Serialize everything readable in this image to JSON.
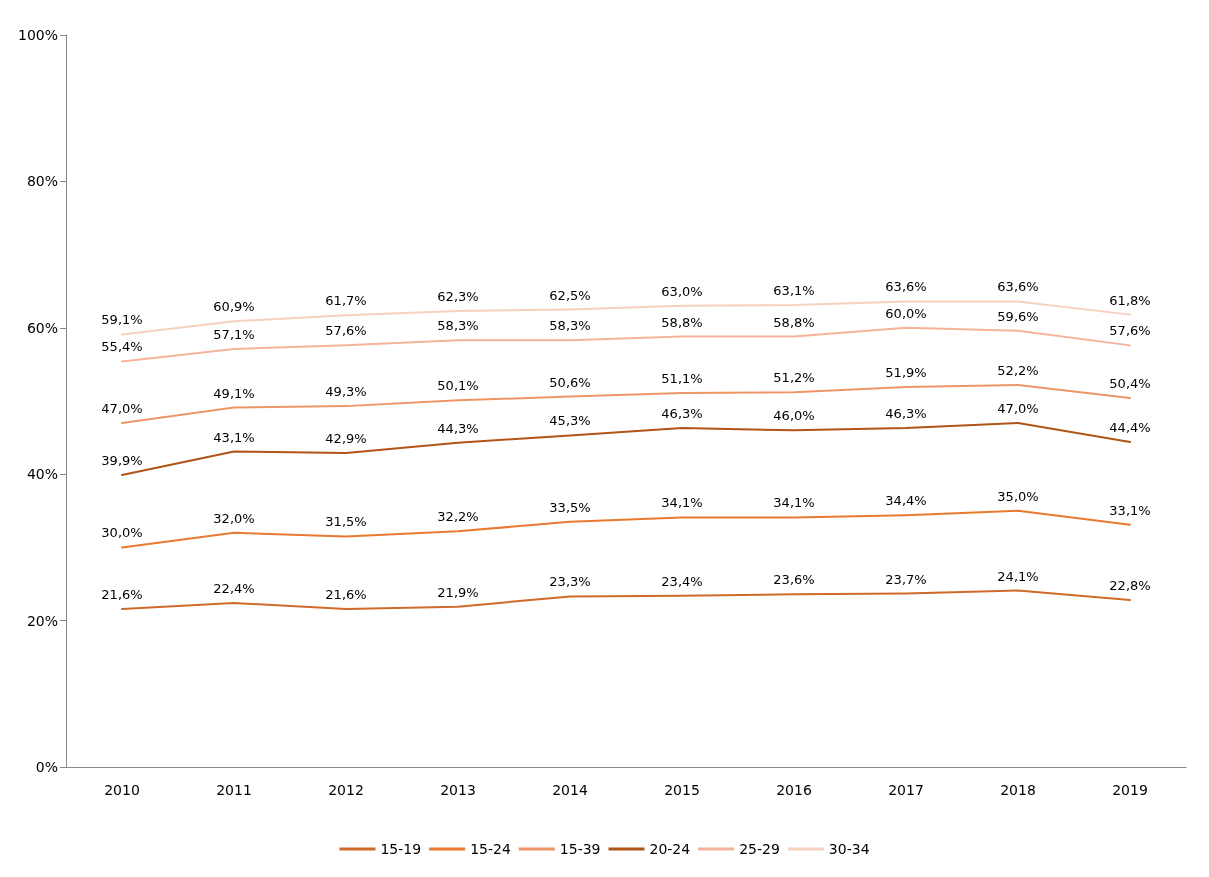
{
  "chart_data": {
    "type": "line",
    "categories": [
      "2010",
      "2011",
      "2012",
      "2013",
      "2014",
      "2015",
      "2016",
      "2017",
      "2018",
      "2019"
    ],
    "series": [
      {
        "name": "15-19",
        "color": "#d06a2a",
        "values": [
          21.6,
          22.4,
          21.6,
          21.9,
          23.3,
          23.4,
          23.6,
          23.7,
          24.1,
          22.8
        ],
        "value_labels": [
          "21,6%",
          "22,4%",
          "21,6%",
          "21,9%",
          "23,3%",
          "23,4%",
          "23,6%",
          "23,7%",
          "24,1%",
          "22,8%"
        ]
      },
      {
        "name": "15-24",
        "color": "#e87a30",
        "values": [
          30.0,
          32.0,
          31.5,
          32.2,
          33.5,
          34.1,
          34.1,
          34.4,
          35.0,
          33.1
        ],
        "value_labels": [
          "30,0%",
          "32,0%",
          "31,5%",
          "32,2%",
          "33,5%",
          "34,1%",
          "34,1%",
          "34,4%",
          "35,0%",
          "33,1%"
        ]
      },
      {
        "name": "15-39",
        "color": "#ee9566",
        "values": [
          47.0,
          49.1,
          49.3,
          50.1,
          50.6,
          51.1,
          51.2,
          51.9,
          52.2,
          50.4
        ],
        "value_labels": [
          "47,0%",
          "49,1%",
          "49,3%",
          "50,1%",
          "50,6%",
          "51,1%",
          "51,2%",
          "51,9%",
          "52,2%",
          "50,4%"
        ]
      },
      {
        "name": "20-24",
        "color": "#b05418",
        "values": [
          39.9,
          43.1,
          42.9,
          44.3,
          45.3,
          46.3,
          46.0,
          46.3,
          47.0,
          44.4
        ],
        "value_labels": [
          "39,9%",
          "43,1%",
          "42,9%",
          "44,3%",
          "45,3%",
          "46,3%",
          "46,0%",
          "46,3%",
          "47,0%",
          "44,4%"
        ]
      },
      {
        "name": "25-29",
        "color": "#f4b49a",
        "values": [
          55.4,
          57.1,
          57.6,
          58.3,
          58.3,
          58.8,
          58.8,
          60.0,
          59.6,
          57.6
        ],
        "value_labels": [
          "55,4%",
          "57,1%",
          "57,6%",
          "58,3%",
          "58,3%",
          "58,8%",
          "58,8%",
          "60,0%",
          "59,6%",
          "57,6%"
        ]
      },
      {
        "name": "30-34",
        "color": "#f8d0bf",
        "values": [
          59.1,
          60.9,
          61.7,
          62.3,
          62.5,
          63.0,
          63.1,
          63.6,
          63.6,
          61.8
        ],
        "value_labels": [
          "59,1%",
          "60,9%",
          "61,7%",
          "62,3%",
          "62,5%",
          "63,0%",
          "63,1%",
          "63,6%",
          "63,6%",
          "61,8%"
        ]
      }
    ],
    "ylim": [
      0,
      100
    ],
    "yticks": [
      {
        "value": 0,
        "label": "0%"
      },
      {
        "value": 20,
        "label": "20%"
      },
      {
        "value": 40,
        "label": "40%"
      },
      {
        "value": 60,
        "label": "60%"
      },
      {
        "value": 80,
        "label": "80%"
      },
      {
        "value": 100,
        "label": "100%"
      }
    ],
    "grid": false,
    "legend": "bottom",
    "marker": "none",
    "line_style": "solid"
  }
}
